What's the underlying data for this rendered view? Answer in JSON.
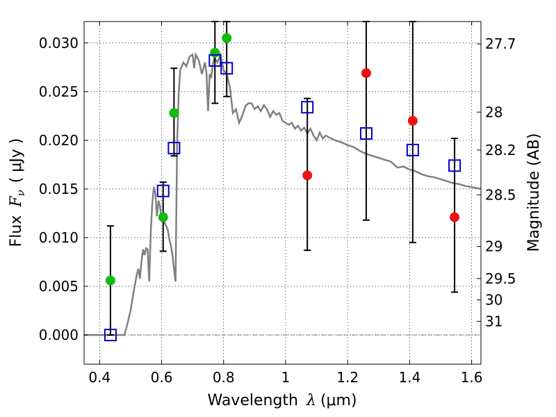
{
  "chart_data": {
    "type": "scatter",
    "xlabel_prefix": "Wavelength",
    "xlabel_symbol": "λ",
    "xlabel_unit": "(μm)",
    "ylabel_prefix": "Flux",
    "ylabel_symbol": "F",
    "ylabel_subscript": "ν",
    "ylabel_unit": "( μJy )",
    "y2label": "Magnitude (AB)",
    "xlim": [
      0.35,
      1.63
    ],
    "ylim": [
      -0.003,
      0.0322
    ],
    "grid": true,
    "xticks": [
      0.4,
      0.6,
      0.8,
      1.0,
      1.2,
      1.4,
      1.6
    ],
    "xtick_labels": [
      "0.4",
      "0.6",
      "0.8",
      "1",
      "1.2",
      "1.4",
      "1.6"
    ],
    "yticks": [
      0.0,
      0.005,
      0.01,
      0.015,
      0.02,
      0.025,
      0.03
    ],
    "ytick_labels": [
      "0.000",
      "0.005",
      "0.010",
      "0.015",
      "0.020",
      "0.025",
      "0.030"
    ],
    "mag_ticks": [
      {
        "label": "27.7",
        "flux": 0.0299
      },
      {
        "label": "28",
        "flux": 0.0229
      },
      {
        "label": "28.2",
        "flux": 0.019
      },
      {
        "label": "28.5",
        "flux": 0.0144
      },
      {
        "label": "29",
        "flux": 0.0091
      },
      {
        "label": "29.5",
        "flux": 0.0058
      },
      {
        "label": "30",
        "flux": 0.0036
      },
      {
        "label": "31",
        "flux": 0.0014
      }
    ],
    "model_color": "#808080",
    "model_spectrum": [
      [
        0.35,
        0.0
      ],
      [
        0.48,
        0.0
      ],
      [
        0.49,
        0.0012
      ],
      [
        0.5,
        0.0025
      ],
      [
        0.51,
        0.0045
      ],
      [
        0.52,
        0.0062
      ],
      [
        0.525,
        0.0068
      ],
      [
        0.53,
        0.0058
      ],
      [
        0.535,
        0.0075
      ],
      [
        0.54,
        0.0088
      ],
      [
        0.545,
        0.0082
      ],
      [
        0.55,
        0.0089
      ],
      [
        0.555,
        0.0088
      ],
      [
        0.56,
        0.0055
      ],
      [
        0.565,
        0.0105
      ],
      [
        0.57,
        0.0135
      ],
      [
        0.575,
        0.0152
      ],
      [
        0.58,
        0.0145
      ],
      [
        0.585,
        0.0122
      ],
      [
        0.59,
        0.0138
      ],
      [
        0.595,
        0.0132
      ],
      [
        0.6,
        0.0118
      ],
      [
        0.605,
        0.0125
      ],
      [
        0.61,
        0.0115
      ],
      [
        0.615,
        0.0112
      ],
      [
        0.62,
        0.0108
      ],
      [
        0.625,
        0.0098
      ],
      [
        0.63,
        0.0092
      ],
      [
        0.635,
        0.0082
      ],
      [
        0.64,
        0.0068
      ],
      [
        0.645,
        0.0055
      ],
      [
        0.65,
        0.0195
      ],
      [
        0.655,
        0.0248
      ],
      [
        0.66,
        0.0272
      ],
      [
        0.67,
        0.028
      ],
      [
        0.68,
        0.0276
      ],
      [
        0.69,
        0.0286
      ],
      [
        0.7,
        0.0288
      ],
      [
        0.705,
        0.0274
      ],
      [
        0.71,
        0.0288
      ],
      [
        0.72,
        0.0282
      ],
      [
        0.73,
        0.0268
      ],
      [
        0.74,
        0.028
      ],
      [
        0.745,
        0.0268
      ],
      [
        0.75,
        0.023
      ],
      [
        0.755,
        0.0268
      ],
      [
        0.76,
        0.0264
      ],
      [
        0.765,
        0.0278
      ],
      [
        0.77,
        0.0285
      ],
      [
        0.78,
        0.028
      ],
      [
        0.79,
        0.0288
      ],
      [
        0.8,
        0.0272
      ],
      [
        0.81,
        0.0268
      ],
      [
        0.82,
        0.0255
      ],
      [
        0.83,
        0.0228
      ],
      [
        0.84,
        0.0232
      ],
      [
        0.85,
        0.0218
      ],
      [
        0.86,
        0.0225
      ],
      [
        0.87,
        0.0235
      ],
      [
        0.88,
        0.0238
      ],
      [
        0.89,
        0.0238
      ],
      [
        0.9,
        0.0232
      ],
      [
        0.91,
        0.0235
      ],
      [
        0.92,
        0.023
      ],
      [
        0.93,
        0.0236
      ],
      [
        0.94,
        0.0232
      ],
      [
        0.95,
        0.0224
      ],
      [
        0.96,
        0.023
      ],
      [
        0.97,
        0.0226
      ],
      [
        0.98,
        0.0228
      ],
      [
        0.99,
        0.022
      ],
      [
        1.0,
        0.0218
      ],
      [
        1.01,
        0.0216
      ],
      [
        1.02,
        0.0218
      ],
      [
        1.03,
        0.0212
      ],
      [
        1.04,
        0.0215
      ],
      [
        1.05,
        0.021
      ],
      [
        1.06,
        0.0213
      ],
      [
        1.07,
        0.0207
      ],
      [
        1.08,
        0.0212
      ],
      [
        1.09,
        0.0205
      ],
      [
        1.1,
        0.02
      ],
      [
        1.11,
        0.0208
      ],
      [
        1.12,
        0.0202
      ],
      [
        1.13,
        0.0205
      ],
      [
        1.14,
        0.0203
      ],
      [
        1.16,
        0.02
      ],
      [
        1.18,
        0.0198
      ],
      [
        1.2,
        0.0195
      ],
      [
        1.22,
        0.0193
      ],
      [
        1.24,
        0.0189
      ],
      [
        1.26,
        0.0186
      ],
      [
        1.28,
        0.0184
      ],
      [
        1.3,
        0.0182
      ],
      [
        1.32,
        0.018
      ],
      [
        1.34,
        0.0178
      ],
      [
        1.36,
        0.0172
      ],
      [
        1.38,
        0.0173
      ],
      [
        1.4,
        0.017
      ],
      [
        1.42,
        0.0168
      ],
      [
        1.44,
        0.0165
      ],
      [
        1.46,
        0.0163
      ],
      [
        1.48,
        0.0162
      ],
      [
        1.5,
        0.016
      ],
      [
        1.52,
        0.0158
      ],
      [
        1.54,
        0.0156
      ],
      [
        1.56,
        0.0155
      ],
      [
        1.58,
        0.0153
      ],
      [
        1.6,
        0.0152
      ],
      [
        1.63,
        0.015
      ]
    ],
    "model_points": {
      "color": "#0000cc",
      "points": [
        {
          "x": 0.435,
          "y": 0.0,
          "yerr_low": 0.0,
          "yerr_high": 0.0112
        },
        {
          "x": 0.605,
          "y": 0.0148,
          "yerr_low": 0.0086,
          "yerr_high": 0.0157
        },
        {
          "x": 0.64,
          "y": 0.0192,
          "yerr_low": 0.0184,
          "yerr_high": 0.0274
        },
        {
          "x": 0.772,
          "y": 0.0282,
          "yerr_low": 0.0238,
          "yerr_high": 0.0322
        },
        {
          "x": 0.81,
          "y": 0.0274,
          "yerr_low": 0.0245,
          "yerr_high": 0.0322
        },
        {
          "x": 1.07,
          "y": 0.0234,
          "yerr_low": 0.0087,
          "yerr_high": 0.0243
        },
        {
          "x": 1.26,
          "y": 0.0207,
          "yerr_low": 0.0118,
          "yerr_high": 0.0322
        },
        {
          "x": 1.41,
          "y": 0.019,
          "yerr_low": 0.0095,
          "yerr_high": 0.0322
        },
        {
          "x": 1.545,
          "y": 0.0174,
          "yerr_low": 0.0044,
          "yerr_high": 0.0202
        }
      ]
    },
    "detections": {
      "color": "#11bb11",
      "points": [
        {
          "x": 0.435,
          "y": 0.0056
        },
        {
          "x": 0.605,
          "y": 0.0121
        },
        {
          "x": 0.64,
          "y": 0.0228
        },
        {
          "x": 0.772,
          "y": 0.029
        },
        {
          "x": 0.81,
          "y": 0.0305
        }
      ]
    },
    "upper_limits": {
      "color": "#ee1111",
      "points": [
        {
          "x": 1.07,
          "y": 0.0164
        },
        {
          "x": 1.26,
          "y": 0.0269
        },
        {
          "x": 1.41,
          "y": 0.022
        },
        {
          "x": 1.545,
          "y": 0.0121
        }
      ]
    }
  }
}
